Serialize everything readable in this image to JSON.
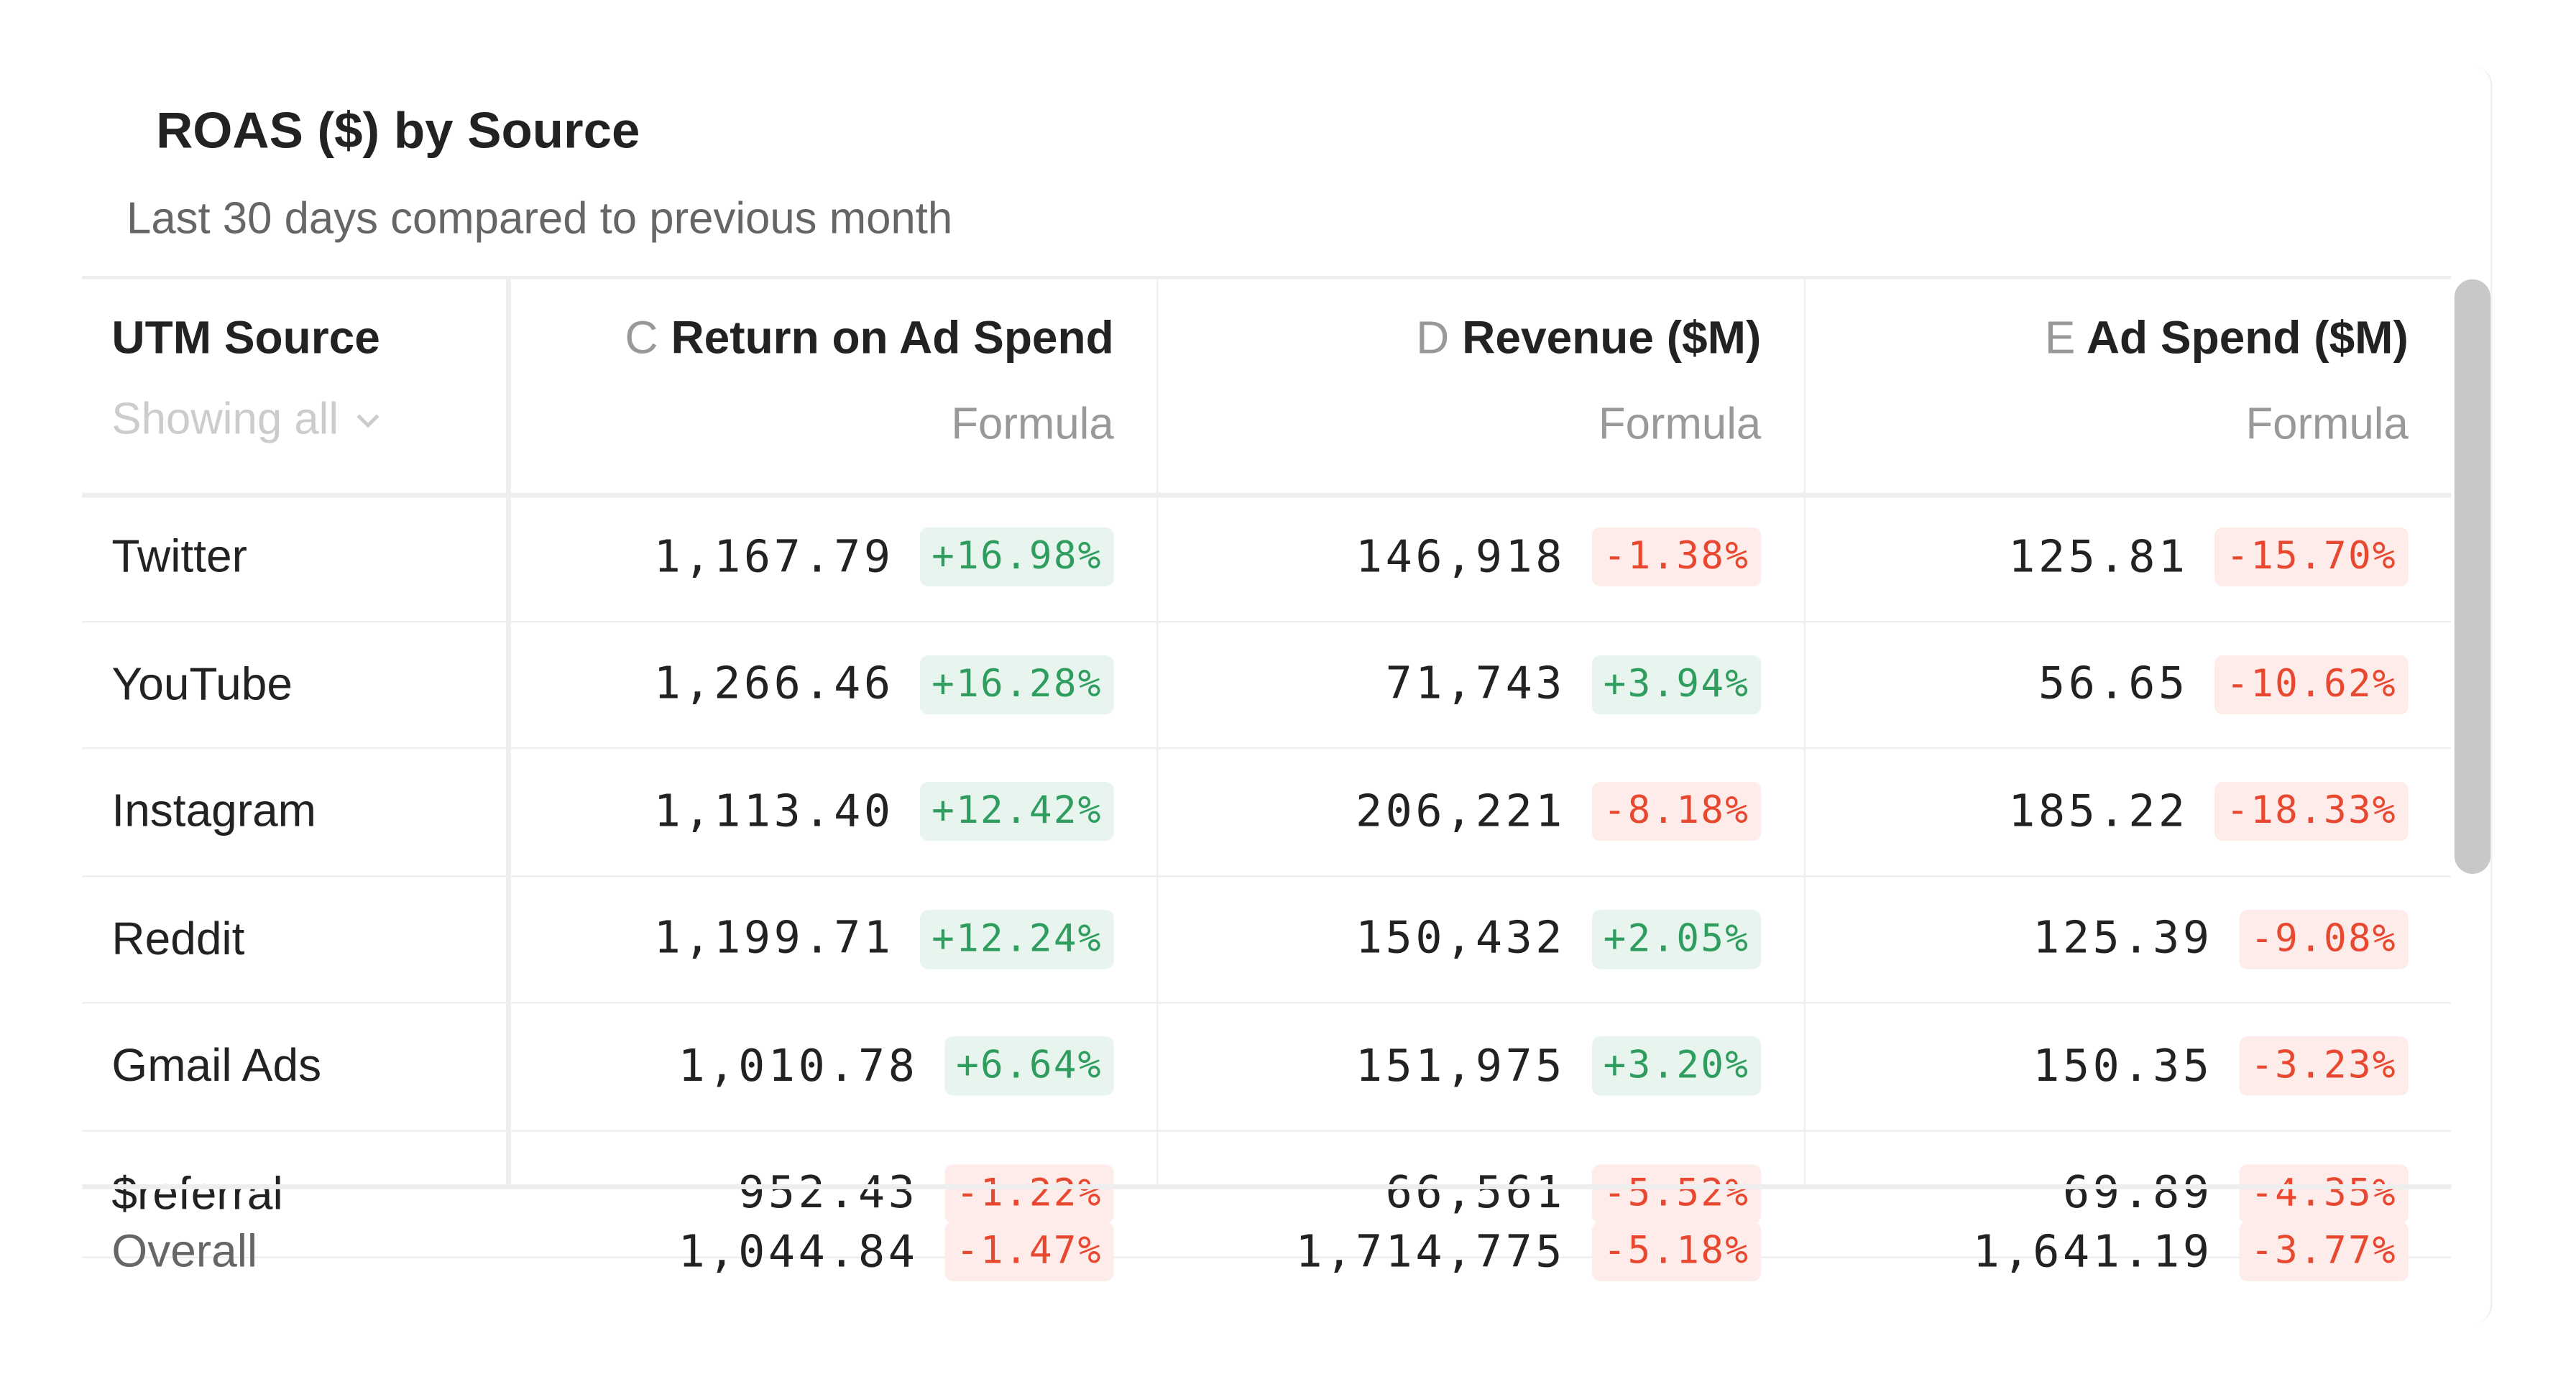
{
  "title": "ROAS ($) by Source",
  "subtitle": "Last 30 days compared to previous month",
  "columns": [
    {
      "name": "UTM Source",
      "filter": "Showing all"
    },
    {
      "letter": "C",
      "name": "Return on Ad Spend",
      "sub": "Formula"
    },
    {
      "letter": "D",
      "name": "Revenue ($M)",
      "sub": "Formula"
    },
    {
      "letter": "E",
      "name": "Ad Spend ($M)",
      "sub": "Formula"
    }
  ],
  "rows": [
    {
      "source": "Twitter",
      "roas": "1,167.79",
      "roas_change": "+16.98%",
      "revenue": "146,918",
      "revenue_change": "-1.38%",
      "spend": "125.81",
      "spend_change": "-15.70%"
    },
    {
      "source": "YouTube",
      "roas": "1,266.46",
      "roas_change": "+16.28%",
      "revenue": "71,743",
      "revenue_change": "+3.94%",
      "spend": "56.65",
      "spend_change": "-10.62%"
    },
    {
      "source": "Instagram",
      "roas": "1,113.40",
      "roas_change": "+12.42%",
      "revenue": "206,221",
      "revenue_change": "-8.18%",
      "spend": "185.22",
      "spend_change": "-18.33%"
    },
    {
      "source": "Reddit",
      "roas": "1,199.71",
      "roas_change": "+12.24%",
      "revenue": "150,432",
      "revenue_change": "+2.05%",
      "spend": "125.39",
      "spend_change": "-9.08%"
    },
    {
      "source": "Gmail Ads",
      "roas": "1,010.78",
      "roas_change": "+6.64%",
      "revenue": "151,975",
      "revenue_change": "+3.20%",
      "spend": "150.35",
      "spend_change": "-3.23%"
    },
    {
      "source": "$referral",
      "roas": "952.43",
      "roas_change": "-1.22%",
      "revenue": "66,561",
      "revenue_change": "-5.52%",
      "spend": "69.89",
      "spend_change": "-4.35%"
    }
  ],
  "overall": {
    "source": "Overall",
    "roas": "1,044.84",
    "roas_change": "-1.47%",
    "revenue": "1,714,775",
    "revenue_change": "-5.18%",
    "spend": "1,641.19",
    "spend_change": "-3.77%"
  },
  "colors": {
    "positive": "#2e9d5e",
    "positive_bg": "#e8f5ef",
    "negative": "#e8482f",
    "negative_bg": "#fdecea"
  },
  "icons": {
    "filter": "chevron-down-icon"
  }
}
